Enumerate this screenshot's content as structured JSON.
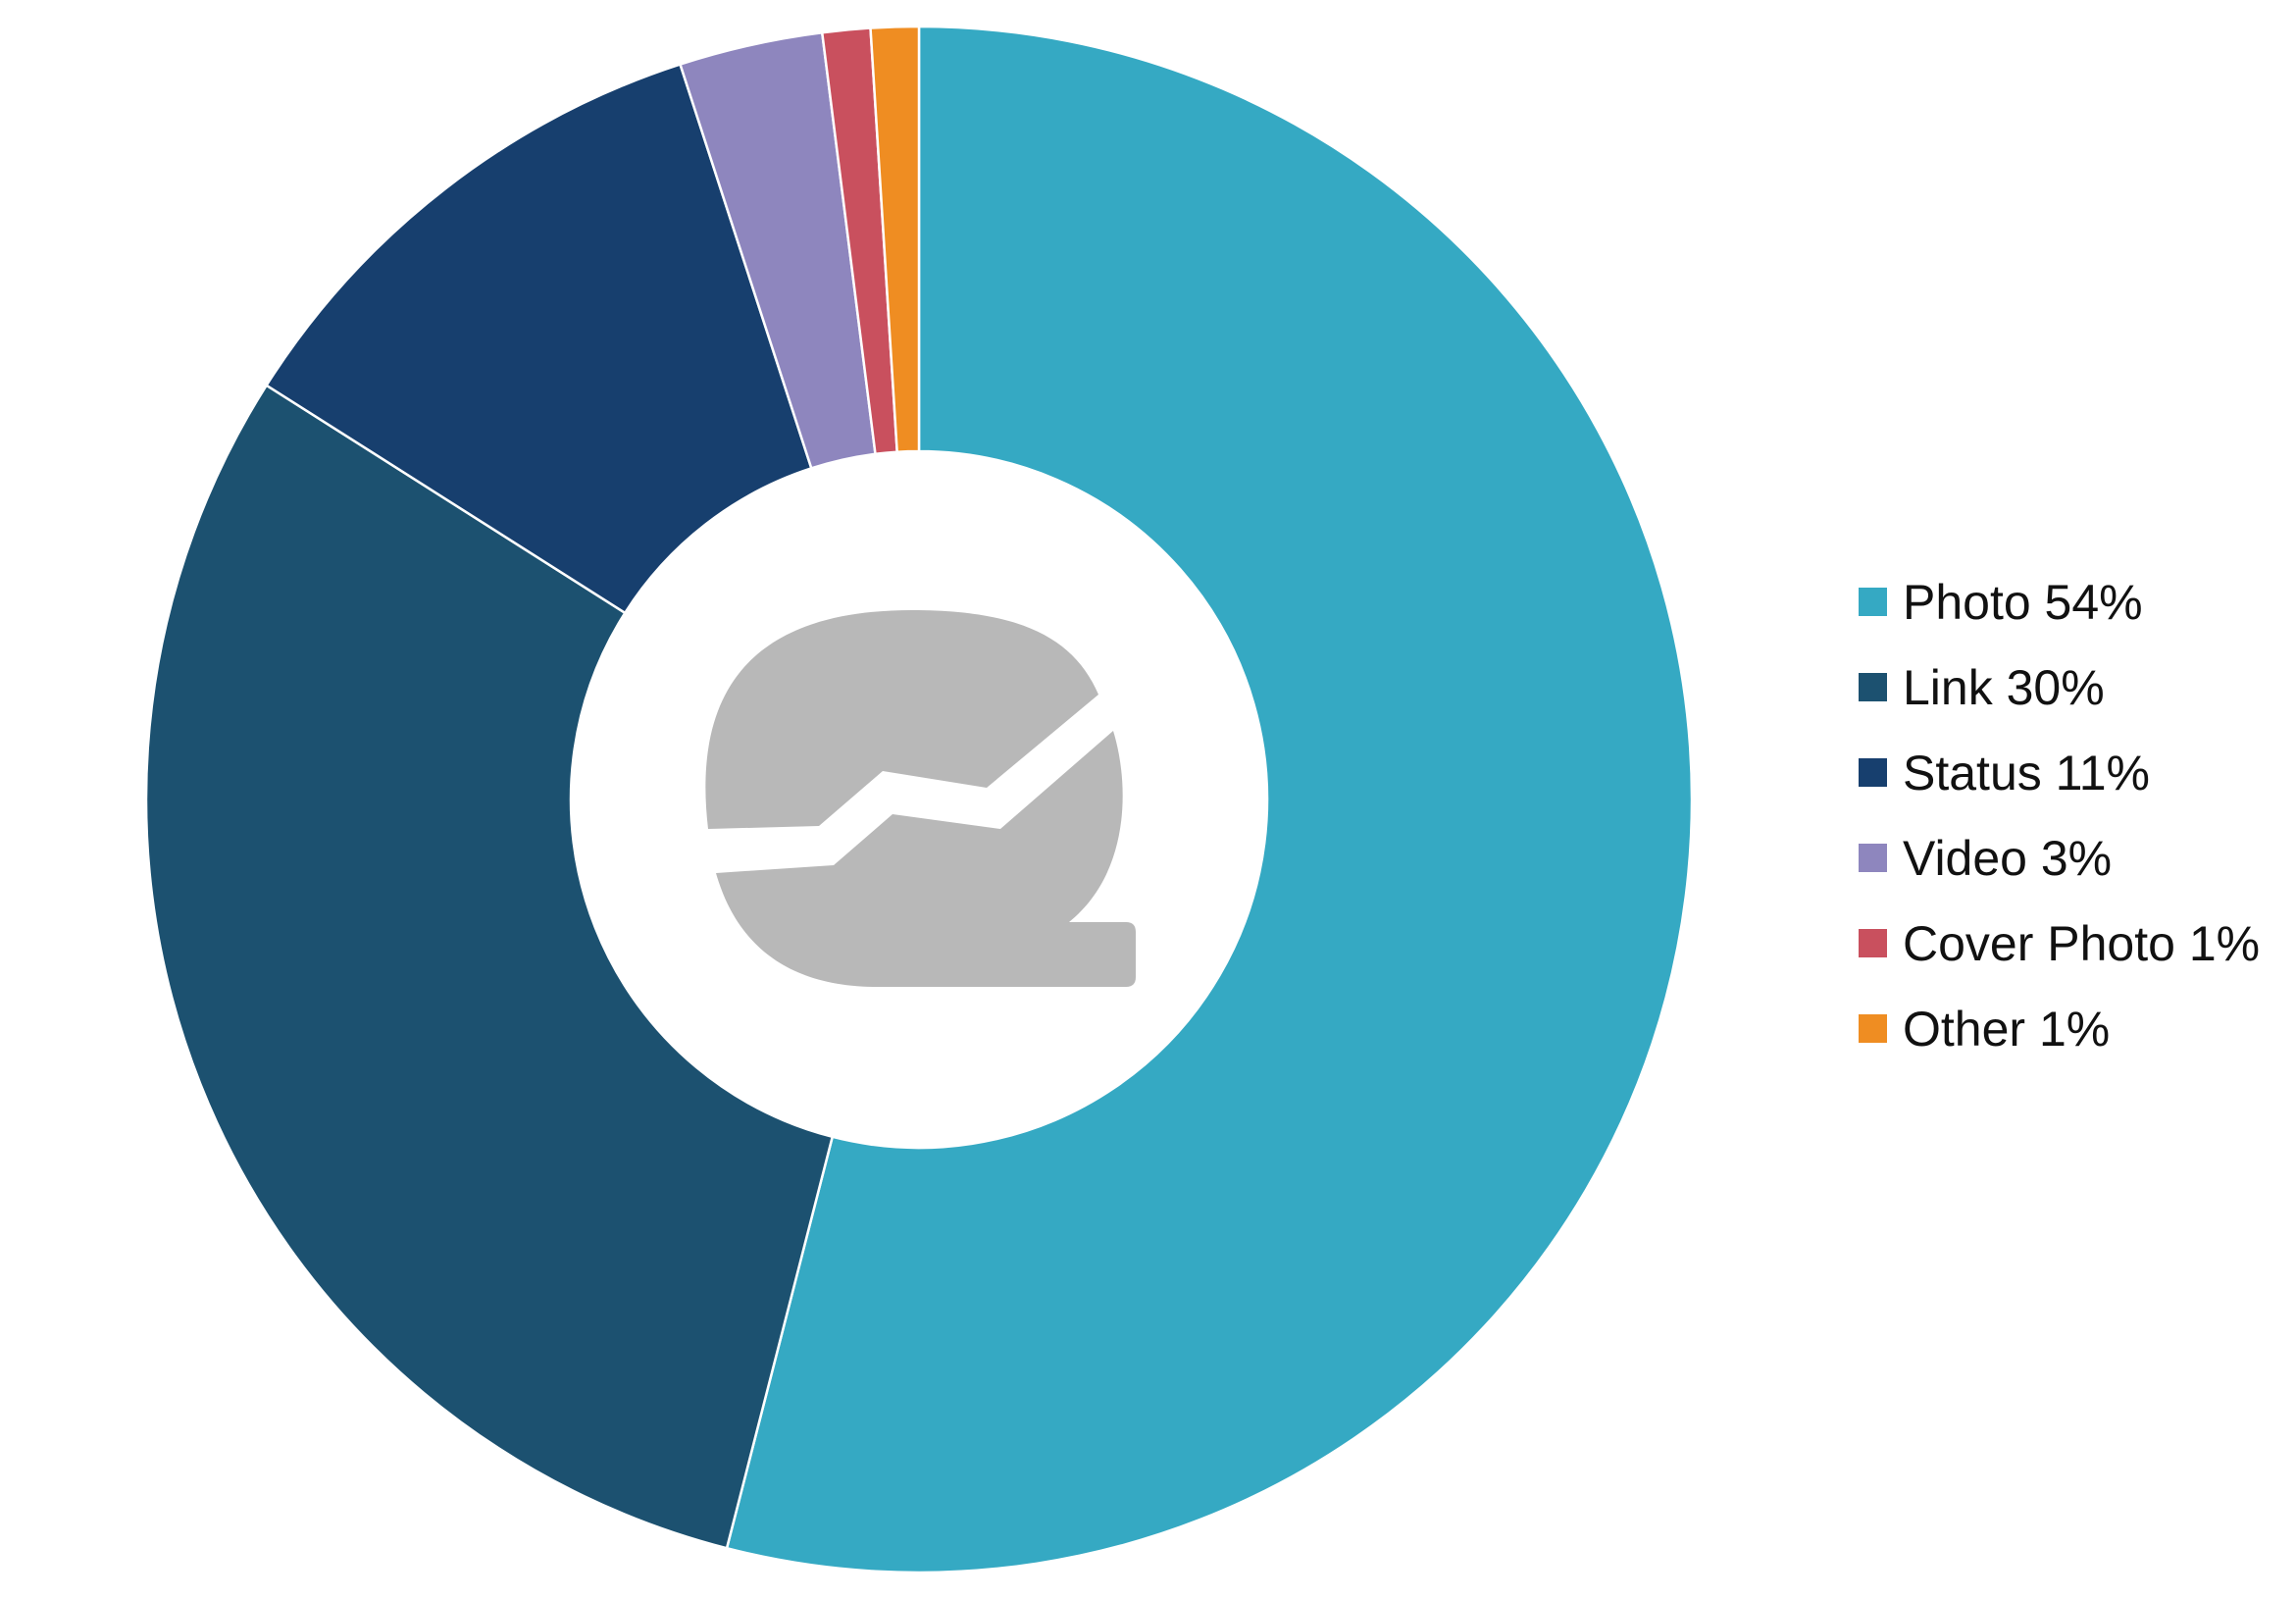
{
  "chart_data": {
    "type": "pie",
    "variant": "donut",
    "title": "",
    "series": [
      {
        "name": "Photo",
        "label": "Photo 54%",
        "value": 54,
        "color": "#35a9c3"
      },
      {
        "name": "Link",
        "label": "Link 30%",
        "value": 30,
        "color": "#1c5170"
      },
      {
        "name": "Status",
        "label": "Status 11%",
        "value": 11,
        "color": "#173f6e"
      },
      {
        "name": "Video",
        "label": "Video 3%",
        "value": 3,
        "color": "#8e86be"
      },
      {
        "name": "Cover Photo",
        "label": "Cover Photo 1%",
        "value": 1,
        "color": "#c9505e"
      },
      {
        "name": "Other",
        "label": "Other 1%",
        "value": 1,
        "color": "#ef8d22"
      }
    ],
    "legend_position": "right",
    "center_icon": "chart-logo-icon"
  }
}
